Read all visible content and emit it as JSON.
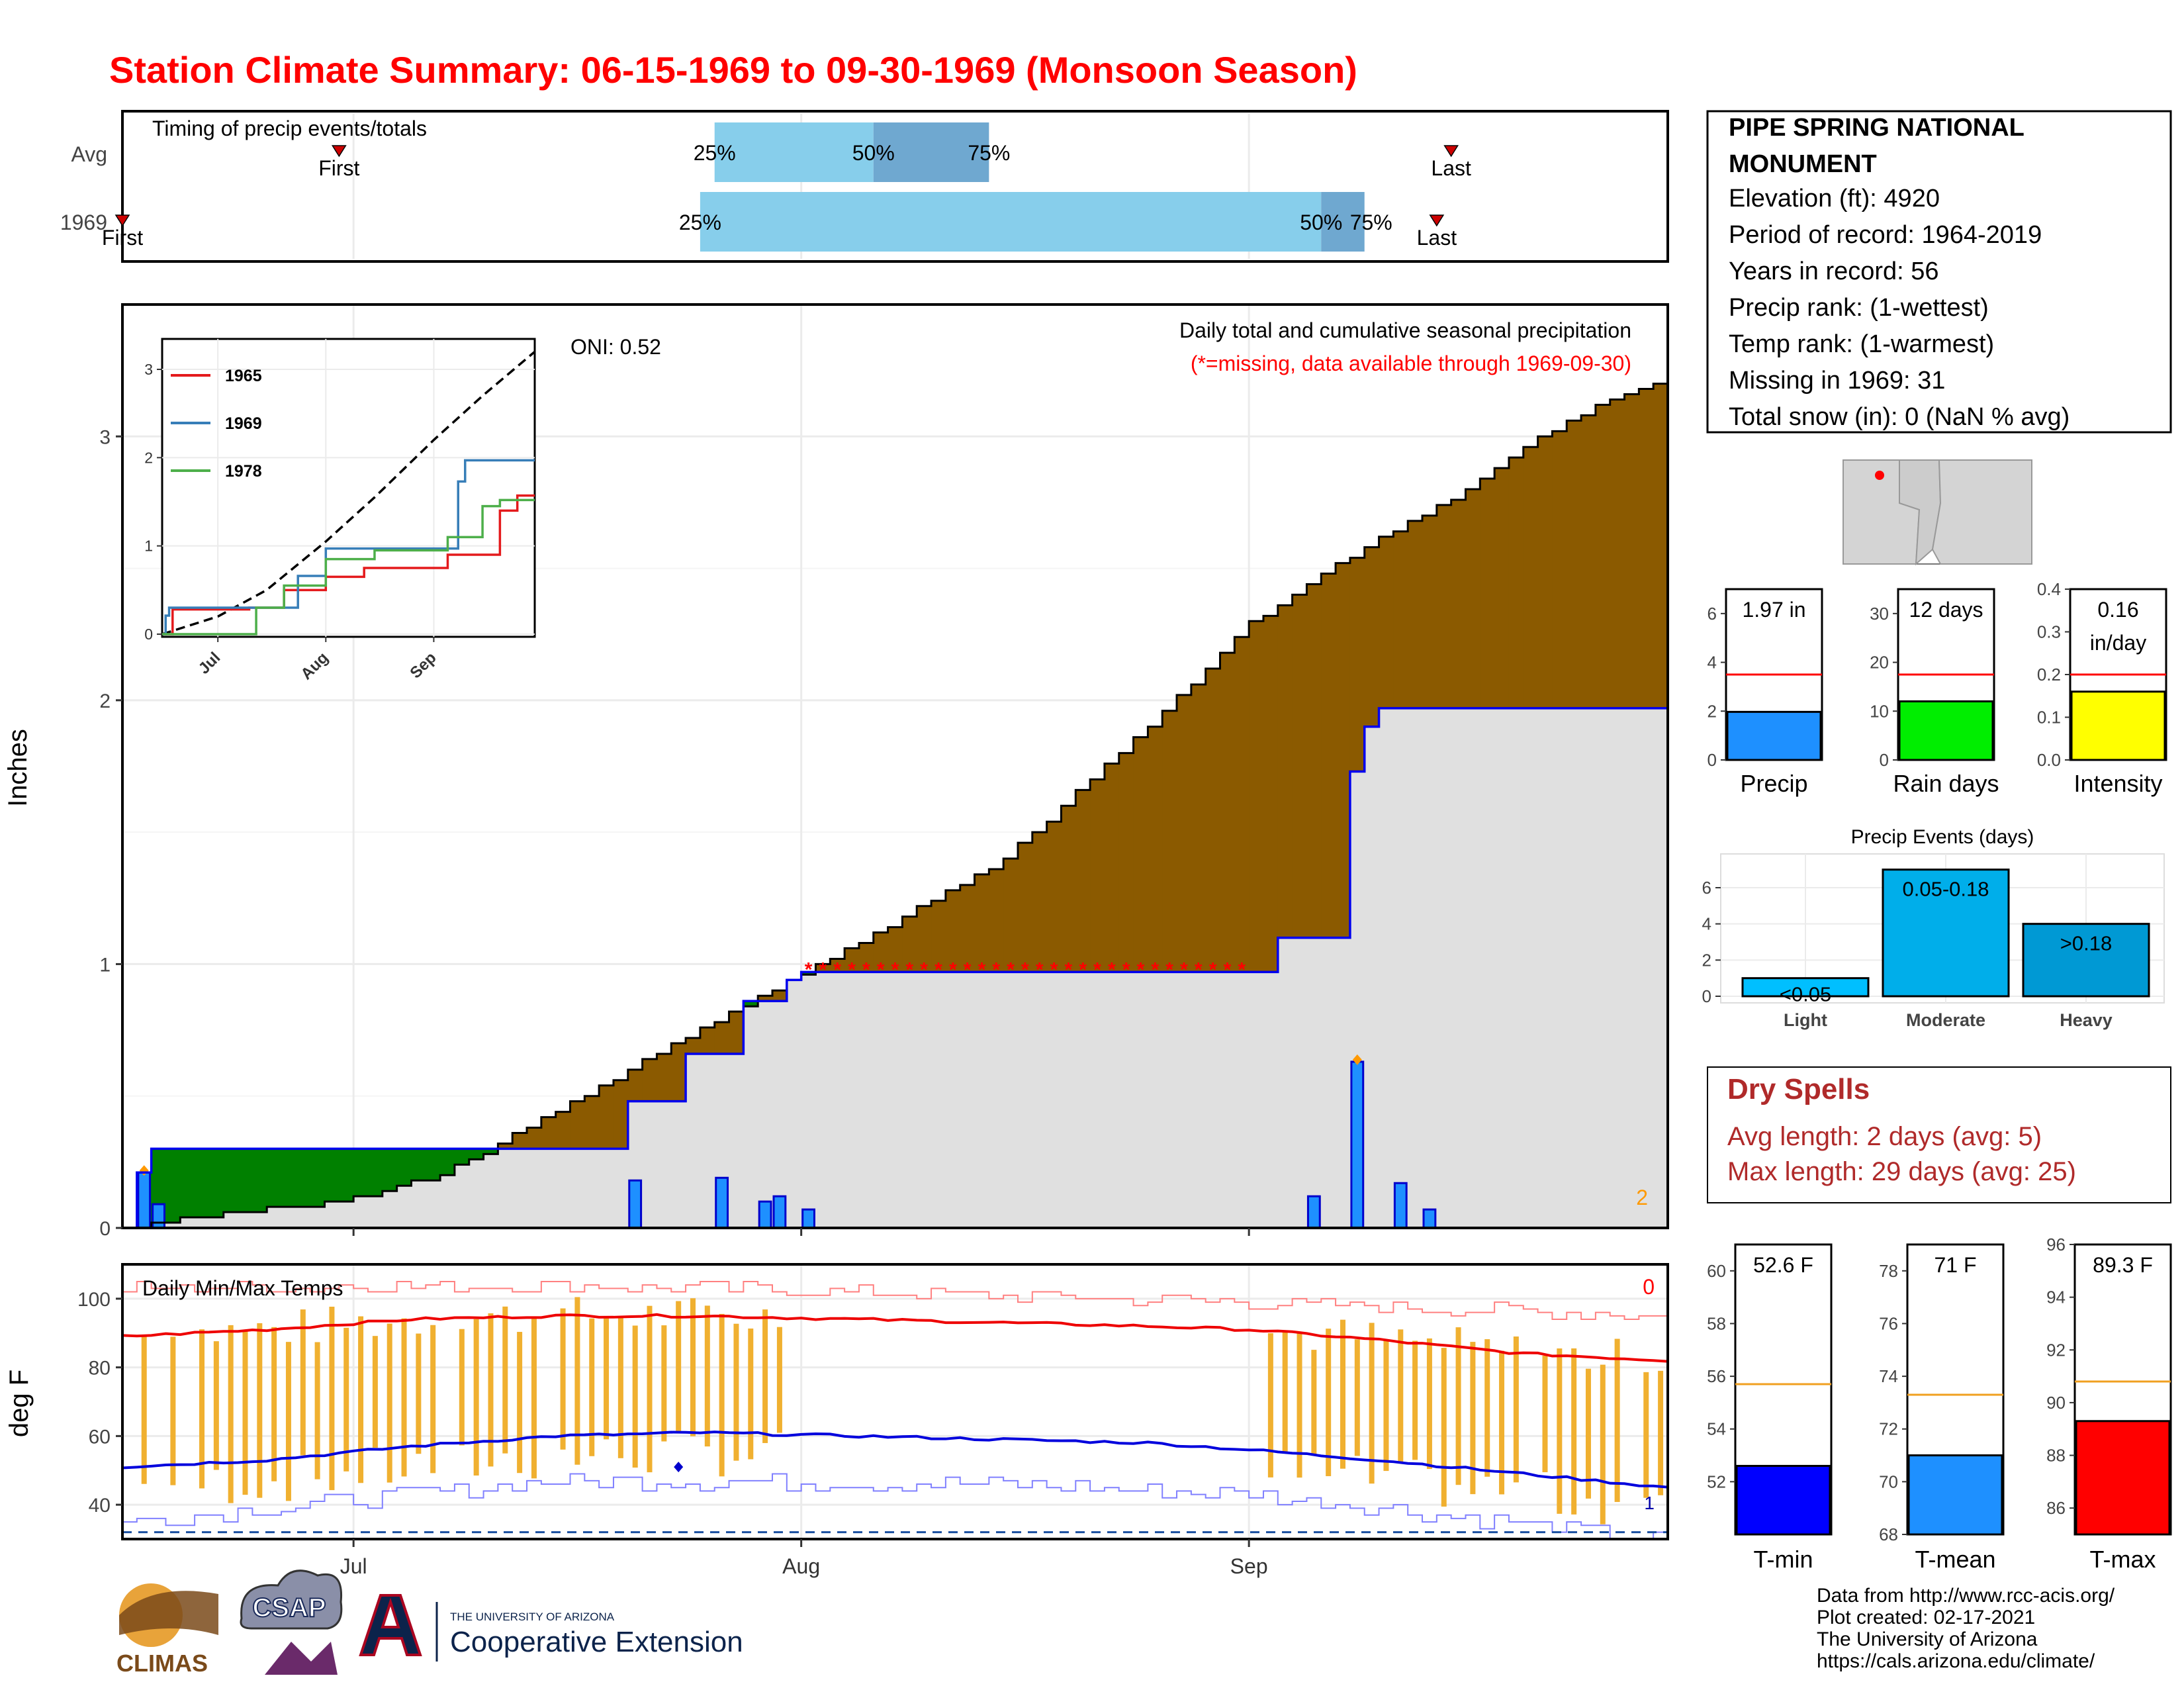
{
  "title": "Station Climate Summary: 06-15-1969 to 09-30-1969 (Monsoon Season)",
  "timing": {
    "title": "Timing of precip events/totals",
    "rows": [
      {
        "label": "Avg",
        "first": "First",
        "last": "Last",
        "p25": "25%",
        "p50": "50%",
        "p75": "75%",
        "first_date": "1969-06-30",
        "last_date": "1969-09-15",
        "q25": "1969-07-26",
        "q50": "1969-08-06",
        "q75": "1969-08-14"
      },
      {
        "label": "1969",
        "first": "First",
        "last": "Last",
        "p25": "25%",
        "p50": "50%",
        "p75": "75%",
        "first_date": "1969-06-15",
        "last_date": "1969-09-14",
        "q25": "1969-07-25",
        "q50": "1969-09-06",
        "q75": "1969-09-09"
      }
    ]
  },
  "precip_chart": {
    "ylabel": "Inches",
    "oni": "ONI: 0.52",
    "subtitle": "Daily total and cumulative seasonal precipitation",
    "note": "(*=missing, data available through 1969-09-30)",
    "corner_value": "2",
    "x_ticks": [
      "Jul",
      "Aug",
      "Sep"
    ],
    "y_ticks": [
      "0",
      "1",
      "2",
      "3"
    ],
    "inset": {
      "x_ticks": [
        "Jul",
        "Aug",
        "Sep"
      ],
      "y_ticks": [
        "0",
        "1",
        "2",
        "3"
      ],
      "legend": [
        {
          "name": "1965",
          "color": "#e41a1c"
        },
        {
          "name": "1969",
          "color": "#377eb8"
        },
        {
          "name": "1978",
          "color": "#4daf4a"
        }
      ]
    }
  },
  "temp_chart": {
    "ylabel": "deg F",
    "title": "Daily Min/Max Temps",
    "corner_top": "0",
    "corner_bottom": "1",
    "y_ticks": [
      "40",
      "60",
      "80",
      "100"
    ],
    "x_ticks": [
      "Jul",
      "Aug",
      "Sep"
    ]
  },
  "station": {
    "name": "PIPE SPRING NATIONAL MONUMENT",
    "lines": [
      "Elevation (ft): 4920",
      "Period of record: 1964-2019",
      "Years in record: 56",
      "Precip rank:  (1-wettest)",
      "Temp rank:  (1-warmest)",
      "Missing in 1969: 31",
      "Total snow (in): 0 (NaN % avg)"
    ]
  },
  "mini_bars": [
    {
      "label": "Precip",
      "value_label": "1.97 in",
      "value": 1.97,
      "avg": 3.5,
      "ymax": 7,
      "ticks": [
        "0",
        "2",
        "4",
        "6"
      ],
      "tick_vals": [
        0,
        2,
        4,
        6
      ],
      "color": "#1e90ff"
    },
    {
      "label": "Rain days",
      "value_label": "12 days",
      "value": 12,
      "avg": 17.5,
      "ymax": 35,
      "ticks": [
        "0",
        "10",
        "20",
        "30"
      ],
      "tick_vals": [
        0,
        10,
        20,
        30
      ],
      "color": "#00ee00"
    },
    {
      "label": "Intensity",
      "value_label": "0.16",
      "value_label2": "in/day",
      "value": 0.16,
      "avg": 0.2,
      "ymax": 0.4,
      "ticks": [
        "0.0",
        "0.1",
        "0.2",
        "0.3",
        "0.4"
      ],
      "tick_vals": [
        0,
        0.1,
        0.2,
        0.3,
        0.4
      ],
      "color": "#ffff00"
    }
  ],
  "events": {
    "title": "Precip Events (days)",
    "categories": [
      "Light",
      "Moderate",
      "Heavy"
    ],
    "bar_labels": [
      "<0.05",
      "0.05-0.18",
      ">0.18"
    ],
    "values": [
      1,
      7,
      4
    ],
    "y_ticks": [
      "0",
      "2",
      "4",
      "6"
    ],
    "colors": [
      "#00bfff",
      "#00aeea",
      "#0099d4"
    ]
  },
  "dry_spells": {
    "title": "Dry Spells",
    "avg": "Avg length: 2 days (avg: 5)",
    "max": "Max length: 29 days (avg: 25)"
  },
  "temp_bars": [
    {
      "label": "T-min",
      "value_label": "52.6 F",
      "value": 52.6,
      "avg": 55.7,
      "ymin": 50,
      "ymax": 61,
      "ticks": [
        "52",
        "54",
        "56",
        "58",
        "60"
      ],
      "tick_vals": [
        52,
        54,
        56,
        58,
        60
      ],
      "color": "#0000ff"
    },
    {
      "label": "T-mean",
      "value_label": "71 F",
      "value": 71,
      "avg": 73.3,
      "ymin": 68,
      "ymax": 79,
      "ticks": [
        "68",
        "70",
        "72",
        "74",
        "76",
        "78"
      ],
      "tick_vals": [
        68,
        70,
        72,
        74,
        76,
        78
      ],
      "color": "#1e90ff"
    },
    {
      "label": "T-max",
      "value_label": "89.3 F",
      "value": 89.3,
      "avg": 90.8,
      "ymin": 85,
      "ymax": 96,
      "ticks": [
        "86",
        "88",
        "90",
        "92",
        "94",
        "96"
      ],
      "tick_vals": [
        86,
        88,
        90,
        92,
        94,
        96
      ],
      "color": "#ff0000"
    }
  ],
  "credits": [
    "Data from http://www.rcc-acis.org/",
    "Plot created: 02-17-2021",
    "The University of Arizona",
    "https://cals.arizona.edu/climate/"
  ],
  "logos": {
    "climas": "CLIMAS",
    "csap": "CSAP",
    "ua_small": "THE UNIVERSITY OF ARIZONA",
    "ua_big": "Cooperative Extension"
  },
  "chart_data": [
    {
      "type": "line",
      "title": "Daily total and cumulative seasonal precipitation",
      "ylabel": "Inches",
      "xlim": [
        "1969-06-15",
        "1969-09-30"
      ],
      "ylim": [
        0,
        3.5
      ],
      "daily_bars": [
        {
          "x": "1969-06-16",
          "y": 0.21
        },
        {
          "x": "1969-06-17",
          "y": 0.09
        },
        {
          "x": "1969-07-26",
          "y": 0.19
        },
        {
          "x": "1969-07-20",
          "y": 0.18
        },
        {
          "x": "1969-07-29",
          "y": 0.1
        },
        {
          "x": "1969-07-30",
          "y": 0.12
        },
        {
          "x": "1969-08-01",
          "y": 0.07
        },
        {
          "x": "1969-09-05",
          "y": 0.12
        },
        {
          "x": "1969-09-08",
          "y": 0.63
        },
        {
          "x": "1969-09-11",
          "y": 0.17
        },
        {
          "x": "1969-09-13",
          "y": 0.07
        }
      ],
      "series": [
        {
          "name": "1969 cumulative",
          "points": [
            [
              "1969-06-15",
              0
            ],
            [
              "1969-06-16",
              0.21
            ],
            [
              "1969-06-17",
              0.3
            ],
            [
              "1969-07-07",
              0.3
            ],
            [
              "1969-07-08",
              0.3
            ],
            [
              "1969-07-19",
              0.3
            ],
            [
              "1969-07-20",
              0.48
            ],
            [
              "1969-07-23",
              0.48
            ],
            [
              "1969-07-24",
              0.66
            ],
            [
              "1969-07-27",
              0.66
            ],
            [
              "1969-07-28",
              0.86
            ],
            [
              "1969-07-30",
              0.86
            ],
            [
              "1969-07-31",
              0.94
            ],
            [
              "1969-08-01",
              0.97
            ],
            [
              "1969-09-02",
              0.97
            ],
            [
              "1969-09-03",
              1.1
            ],
            [
              "1969-09-07",
              1.1
            ],
            [
              "1969-09-08",
              1.73
            ],
            [
              "1969-09-09",
              1.9
            ],
            [
              "1969-09-10",
              1.97
            ],
            [
              "1969-09-30",
              1.97
            ]
          ]
        },
        {
          "name": "Average cumulative",
          "points": [
            [
              "1969-06-15",
              0
            ],
            [
              "1969-06-20",
              0.04
            ],
            [
              "1969-06-30",
              0.1
            ],
            [
              "1969-07-07",
              0.2
            ],
            [
              "1969-07-12",
              0.35
            ],
            [
              "1969-07-20",
              0.6
            ],
            [
              "1969-07-31",
              0.93
            ],
            [
              "1969-08-07",
              1.15
            ],
            [
              "1969-08-15",
              1.4
            ],
            [
              "1969-08-25",
              1.9
            ],
            [
              "1969-09-01",
              2.29
            ],
            [
              "1969-09-08",
              2.55
            ],
            [
              "1969-09-15",
              2.76
            ],
            [
              "1969-09-20",
              2.96
            ],
            [
              "1969-09-25",
              3.12
            ],
            [
              "1969-09-30",
              3.21
            ]
          ]
        }
      ],
      "missing_markers": {
        "from": "1969-08-01",
        "to": "1969-08-31",
        "y": 1.0
      }
    },
    {
      "type": "line",
      "title": "",
      "xlim": [
        "1969-06-15",
        "1969-09-30"
      ],
      "ylim": [
        0,
        3.3
      ],
      "series": [
        {
          "name": "Average",
          "style": "dashed",
          "points": [
            [
              "1969-06-15",
              0
            ],
            [
              "1969-07-01",
              0.2
            ],
            [
              "1969-07-15",
              0.5
            ],
            [
              "1969-08-01",
              1.05
            ],
            [
              "1969-08-15",
              1.55
            ],
            [
              "1969-09-01",
              2.2
            ],
            [
              "1969-09-15",
              2.7
            ],
            [
              "1969-09-30",
              3.2
            ]
          ]
        },
        {
          "name": "1965",
          "points": [
            [
              "1969-06-15",
              0
            ],
            [
              "1969-06-18",
              0.28
            ],
            [
              "1969-07-10",
              0.3
            ],
            [
              "1969-07-20",
              0.5
            ],
            [
              "1969-08-01",
              0.65
            ],
            [
              "1969-08-12",
              0.75
            ],
            [
              "1969-09-05",
              0.9
            ],
            [
              "1969-09-20",
              1.4
            ],
            [
              "1969-09-25",
              1.57
            ],
            [
              "1969-09-30",
              1.57
            ]
          ]
        },
        {
          "name": "1969",
          "points": [
            [
              "1969-06-15",
              0
            ],
            [
              "1969-06-16",
              0.21
            ],
            [
              "1969-06-17",
              0.3
            ],
            [
              "1969-07-19",
              0.3
            ],
            [
              "1969-07-24",
              0.66
            ],
            [
              "1969-08-01",
              0.97
            ],
            [
              "1969-09-02",
              0.97
            ],
            [
              "1969-09-08",
              1.73
            ],
            [
              "1969-09-10",
              1.97
            ],
            [
              "1969-09-30",
              1.97
            ]
          ]
        },
        {
          "name": "1978",
          "points": [
            [
              "1969-06-15",
              0
            ],
            [
              "1969-07-05",
              0.0
            ],
            [
              "1969-07-12",
              0.3
            ],
            [
              "1969-07-20",
              0.55
            ],
            [
              "1969-08-01",
              0.85
            ],
            [
              "1969-08-15",
              0.95
            ],
            [
              "1969-09-05",
              1.1
            ],
            [
              "1969-09-15",
              1.45
            ],
            [
              "1969-09-20",
              1.52
            ],
            [
              "1969-09-30",
              1.52
            ]
          ]
        }
      ]
    },
    {
      "type": "line",
      "title": "Daily Min/Max Temps",
      "ylabel": "deg F",
      "xlim": [
        "1969-06-15",
        "1969-09-30"
      ],
      "ylim": [
        30,
        110
      ],
      "series": [
        {
          "name": "Avg Tmax",
          "points": [
            [
              "1969-06-15",
              89
            ],
            [
              "1969-06-25",
              91
            ],
            [
              "1969-07-05",
              94
            ],
            [
              "1969-07-15",
              95
            ],
            [
              "1969-07-25",
              95
            ],
            [
              "1969-08-05",
              94
            ],
            [
              "1969-08-15",
              93
            ],
            [
              "1969-08-25",
              92
            ],
            [
              "1969-09-01",
              91
            ],
            [
              "1969-09-10",
              88
            ],
            [
              "1969-09-20",
              84
            ],
            [
              "1969-09-30",
              82
            ]
          ]
        },
        {
          "name": "Avg Tmin",
          "points": [
            [
              "1969-06-15",
              51
            ],
            [
              "1969-06-25",
              53
            ],
            [
              "1969-07-05",
              57
            ],
            [
              "1969-07-15",
              60
            ],
            [
              "1969-07-25",
              61
            ],
            [
              "1969-08-05",
              60
            ],
            [
              "1969-08-15",
              59
            ],
            [
              "1969-08-25",
              58
            ],
            [
              "1969-09-01",
              56
            ],
            [
              "1969-09-10",
              53
            ],
            [
              "1969-09-20",
              49
            ],
            [
              "1969-09-30",
              45
            ]
          ]
        },
        {
          "name": "Record high",
          "points": [
            [
              "1969-06-15",
              103
            ],
            [
              "1969-07-15",
              104
            ],
            [
              "1969-08-15",
              101
            ],
            [
              "1969-09-01",
              99
            ],
            [
              "1969-09-30",
              95
            ]
          ]
        },
        {
          "name": "Record low",
          "points": [
            [
              "1969-06-15",
              35
            ],
            [
              "1969-07-15",
              47
            ],
            [
              "1969-08-15",
              46
            ],
            [
              "1969-09-01",
              43
            ],
            [
              "1969-09-30",
              30
            ]
          ]
        }
      ],
      "freezing_line": 32,
      "missing_from": "1969-08-01",
      "missing_to": "1969-08-31"
    },
    {
      "type": "bar",
      "title": "Precip Events (days)",
      "categories": [
        "Light",
        "Moderate",
        "Heavy"
      ],
      "values": [
        1,
        7,
        4
      ]
    }
  ]
}
